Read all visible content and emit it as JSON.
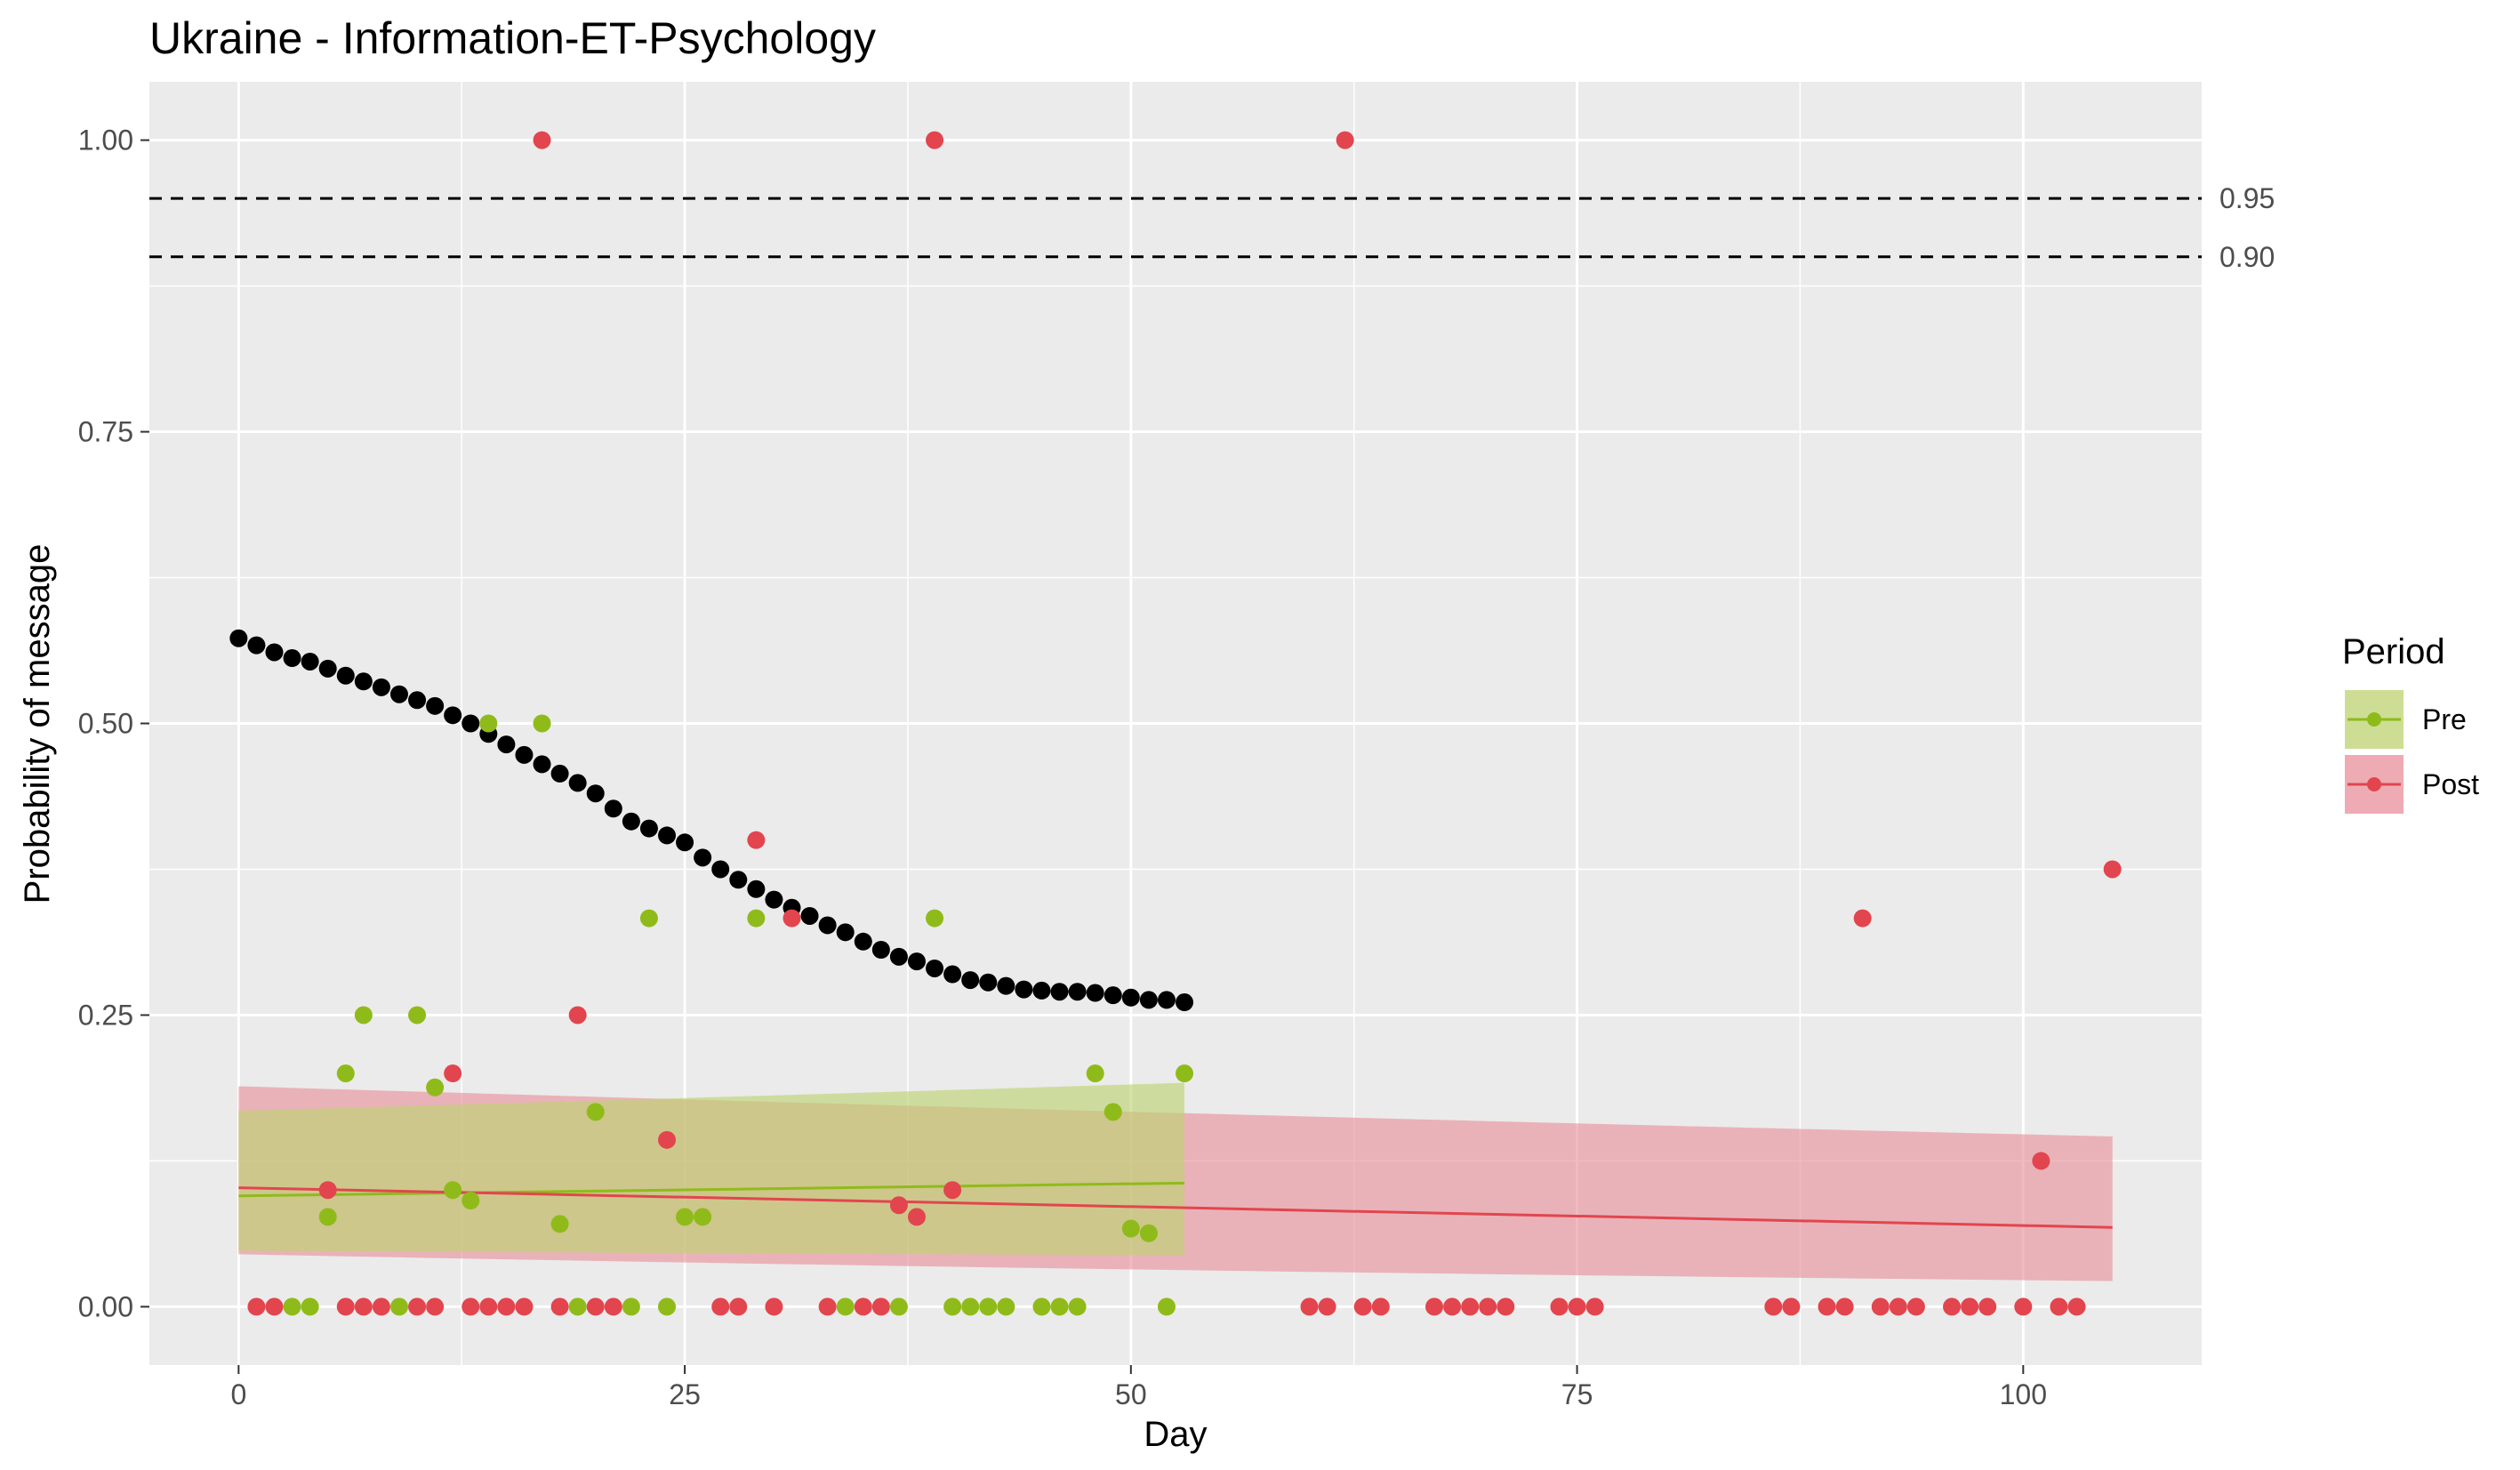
{
  "chart_data": {
    "type": "scatter",
    "title": "Ukraine - Information-ET-Psychology",
    "xlabel": "Day",
    "ylabel": "Probability of message",
    "xlim": [
      -5,
      110
    ],
    "ylim": [
      -0.05,
      1.05
    ],
    "x_ticks": [
      0,
      25,
      50,
      75,
      100
    ],
    "x_tick_labels": [
      "0",
      "25",
      "50",
      "75",
      "100"
    ],
    "y_ticks": [
      0,
      0.25,
      0.5,
      0.75,
      1.0
    ],
    "y_tick_labels": [
      "0.00",
      "0.25",
      "0.50",
      "0.75",
      "1.00"
    ],
    "grid": true,
    "reference_lines": [
      {
        "y": 0.95,
        "label": "0.95",
        "style": "dashed"
      },
      {
        "y": 0.9,
        "label": "0.90",
        "style": "dashed"
      }
    ],
    "legend": {
      "title": "Period",
      "position": "right",
      "entries": [
        {
          "label": "Pre",
          "color": "#8fbb1a"
        },
        {
          "label": "Post",
          "color": "#e2454e"
        }
      ]
    },
    "colors": {
      "panel": "#ebebeb",
      "grid": "#ffffff",
      "pre": "#8fbb1a",
      "pre_band": "#bcd370",
      "post": "#e2454e",
      "post_band": "#e88f99",
      "threshold": "#000000"
    },
    "series": [
      {
        "name": "Pre",
        "type": "scatter",
        "x": [
          3,
          4,
          5,
          6,
          7,
          9,
          10,
          11,
          12,
          13,
          14,
          17,
          18,
          19,
          20,
          22,
          23,
          24,
          25,
          26,
          29,
          34,
          37,
          39,
          40,
          41,
          42,
          43,
          45,
          46,
          47,
          48,
          49,
          50,
          51,
          52,
          53
        ],
        "y": [
          0,
          0,
          0.077,
          0.2,
          0.25,
          0,
          0.25,
          0.188,
          0.1,
          0.091,
          0.5,
          0.5,
          0.071,
          0,
          0.167,
          0,
          0.333,
          0,
          0.077,
          0.077,
          0.333,
          0,
          0,
          0.333,
          0,
          0,
          0,
          0,
          0,
          0,
          0,
          0.2,
          0.167,
          0.067,
          0.063,
          0,
          0.2
        ]
      },
      {
        "name": "Post",
        "type": "scatter",
        "x": [
          1,
          2,
          5,
          6,
          7,
          8,
          10,
          11,
          12,
          13,
          14,
          15,
          16,
          17,
          18,
          19,
          20,
          21,
          24,
          27,
          28,
          29,
          30,
          31,
          33,
          35,
          36,
          37,
          38,
          39,
          40,
          60,
          61,
          62,
          63,
          64,
          67,
          68,
          69,
          70,
          71,
          74,
          75,
          76,
          86,
          87,
          89,
          90,
          91,
          92,
          93,
          94,
          96,
          97,
          98,
          100,
          101,
          102,
          103,
          105
        ],
        "y": [
          0,
          0,
          0.1,
          0,
          0,
          0,
          0,
          0,
          0.2,
          0,
          0,
          0,
          0,
          1.0,
          0,
          0.25,
          0,
          0,
          0.143,
          0,
          0,
          0.4,
          0,
          0.333,
          0,
          0,
          0,
          0.087,
          0.077,
          1.0,
          0.1,
          0,
          0,
          1.0,
          0,
          0,
          0,
          0,
          0,
          0,
          0,
          0,
          0,
          0,
          0,
          0,
          0,
          0,
          0.333,
          0,
          0,
          0,
          0,
          0,
          0,
          0,
          0.125,
          0,
          0,
          0.375
        ]
      },
      {
        "type": "scatter",
        "x": [
          0,
          1,
          2,
          3,
          4,
          5,
          6,
          7,
          8,
          9,
          10,
          11,
          12,
          13,
          14,
          15,
          16,
          17,
          18,
          19,
          20,
          21,
          22,
          23,
          24,
          25,
          26,
          27,
          28,
          29,
          30,
          31,
          32,
          33,
          34,
          35,
          36,
          37,
          38,
          39,
          40,
          41,
          42,
          43,
          44,
          45,
          46,
          47,
          48,
          49,
          50,
          51,
          52,
          53
        ],
        "y": [
          0.573,
          0.567,
          0.561,
          0.556,
          0.553,
          0.547,
          0.541,
          0.536,
          0.531,
          0.525,
          0.52,
          0.515,
          0.507,
          0.5,
          0.491,
          0.482,
          0.473,
          0.465,
          0.457,
          0.449,
          0.44,
          0.427,
          0.416,
          0.41,
          0.404,
          0.398,
          0.385,
          0.375,
          0.366,
          0.358,
          0.349,
          0.342,
          0.335,
          0.327,
          0.321,
          0.313,
          0.306,
          0.3,
          0.296,
          0.29,
          0.285,
          0.28,
          0.278,
          0.275,
          0.272,
          0.271,
          0.27,
          0.27,
          0.269,
          0.267,
          0.265,
          0.263,
          0.263,
          0.261
        ]
      },
      {
        "name": "Pre",
        "type": "line",
        "x": [
          0,
          53
        ],
        "y": [
          0.095,
          0.106
        ],
        "band_lower": [
          0.048,
          0.044
        ],
        "band_upper": [
          0.168,
          0.192
        ]
      },
      {
        "name": "Post",
        "type": "line",
        "x": [
          0,
          105
        ],
        "y": [
          0.102,
          0.068
        ],
        "band_lower": [
          0.045,
          0.022
        ],
        "band_upper": [
          0.189,
          0.146
        ]
      }
    ]
  }
}
